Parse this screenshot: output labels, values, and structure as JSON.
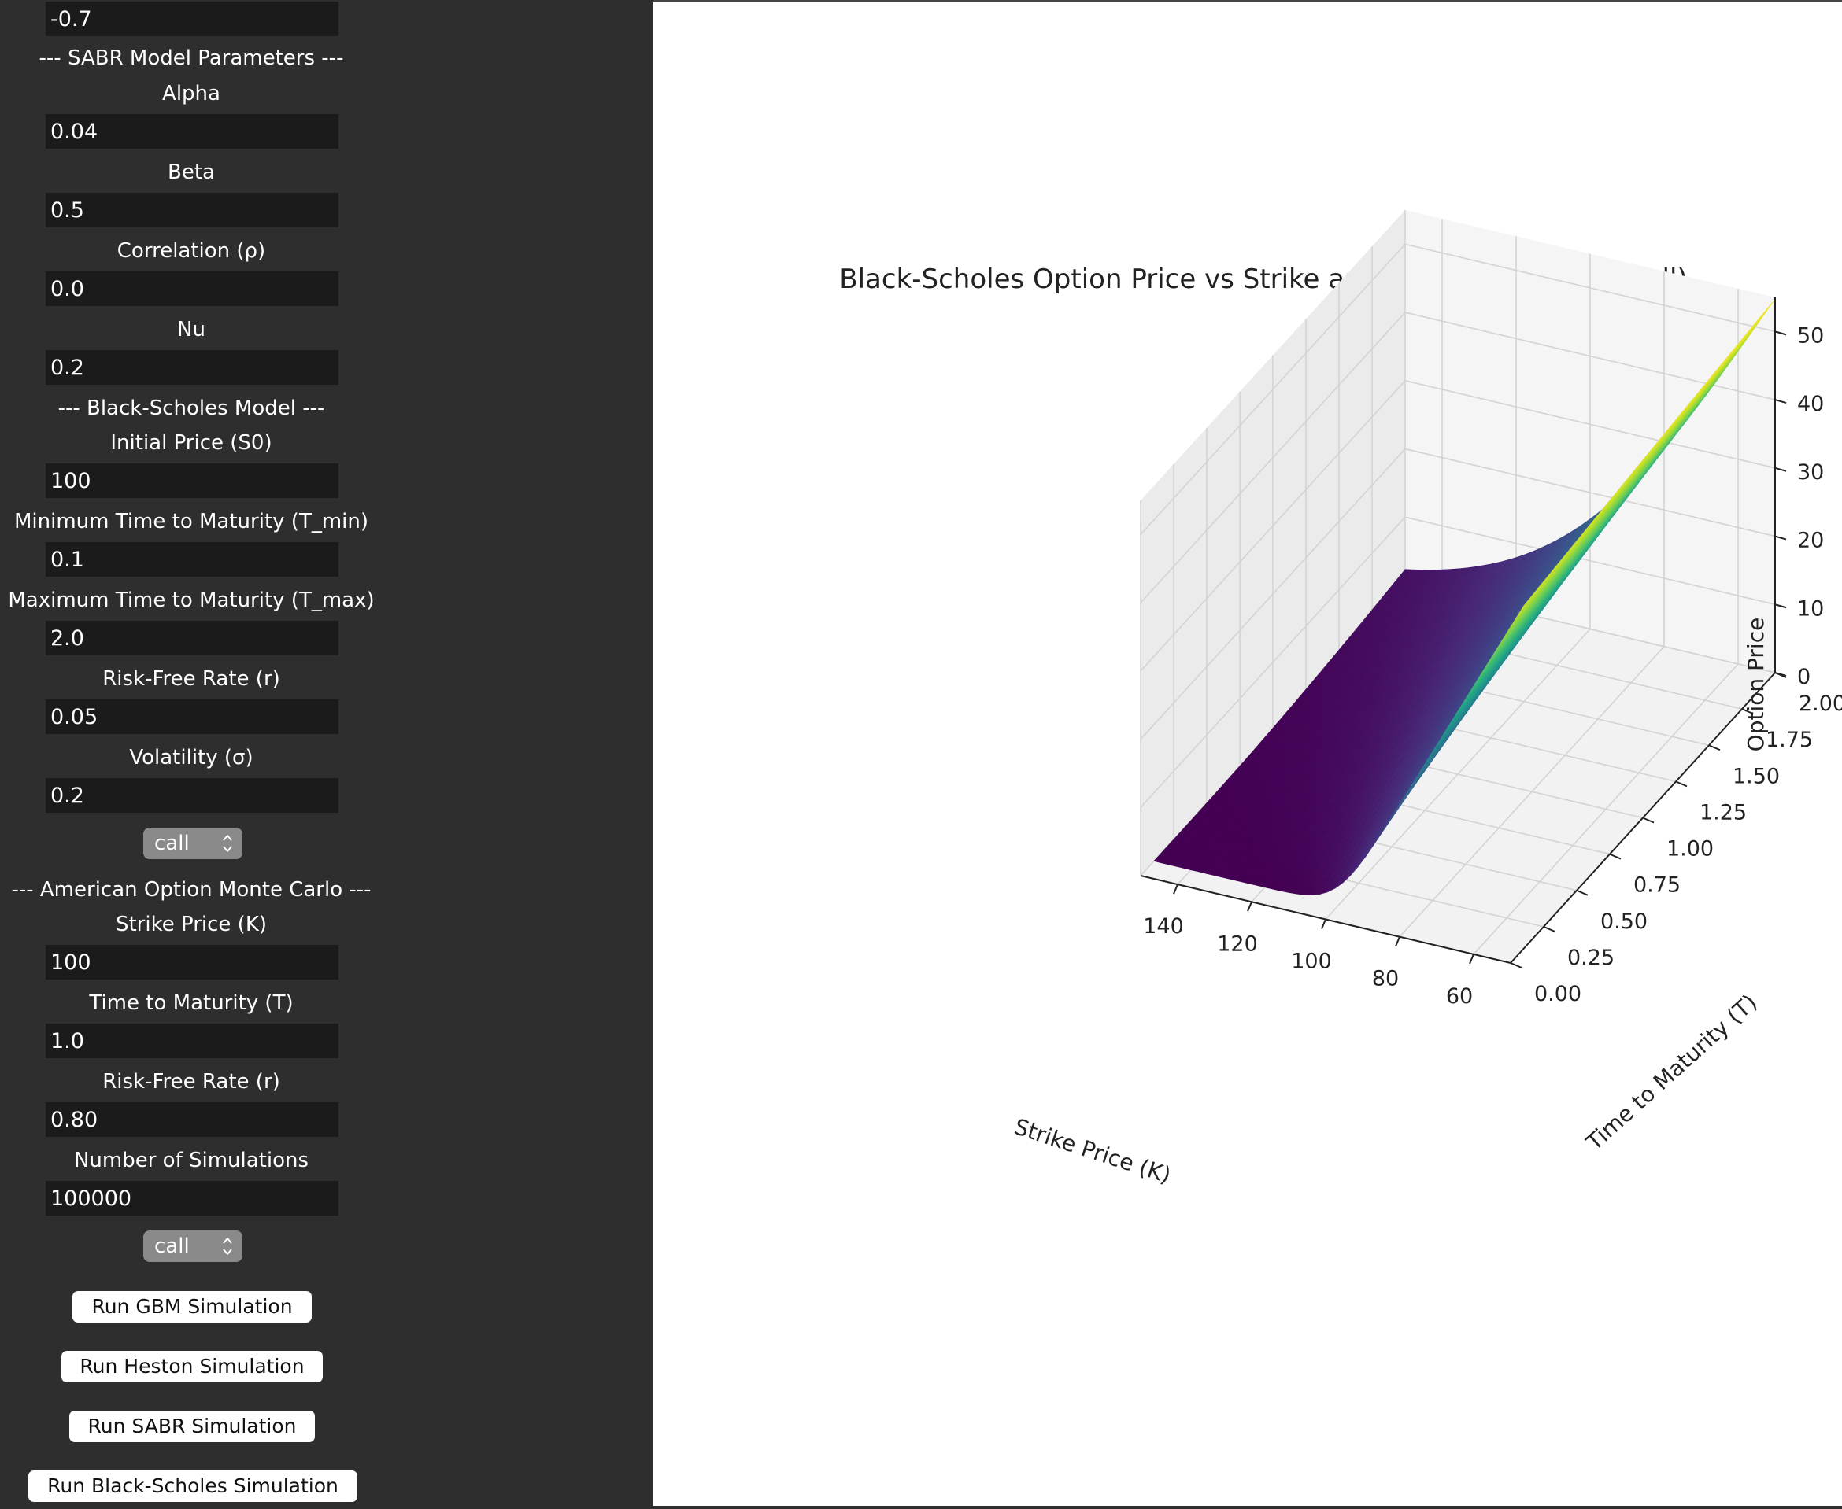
{
  "panel": {
    "top_value": "-0.7",
    "sabr": {
      "header": "--- SABR Model Parameters ---",
      "alpha_label": "Alpha",
      "alpha_value": "0.04",
      "beta_label": "Beta",
      "beta_value": "0.5",
      "rho_label": "Correlation (ρ)",
      "rho_value": "0.0",
      "nu_label": "Nu",
      "nu_value": "0.2"
    },
    "bs": {
      "header": "--- Black-Scholes Model ---",
      "s0_label": "Initial Price (S0)",
      "s0_value": "100",
      "tmin_label": "Minimum Time to Maturity (T_min)",
      "tmin_value": "0.1",
      "tmax_label": "Maximum Time to Maturity (T_max)",
      "tmax_value": "2.0",
      "r_label": "Risk-Free Rate (r)",
      "r_value": "0.05",
      "vol_label": "Volatility (σ)",
      "vol_value": "0.2",
      "option_type": "call"
    },
    "american": {
      "header": "--- American Option Monte Carlo ---",
      "k_label": "Strike Price (K)",
      "k_value": "100",
      "t_label": "Time to Maturity (T)",
      "t_value": "1.0",
      "r_label": "Risk-Free Rate (r)",
      "r_value": "0.80",
      "n_label": "Number of Simulations",
      "n_value": "100000",
      "option_type": "call"
    },
    "buttons": {
      "gbm": "Run GBM Simulation",
      "heston": "Run Heston Simulation",
      "sabr": "Run SABR Simulation",
      "bs": "Run Black-Scholes Simulation"
    }
  },
  "colors": {
    "panel_bg": "#2e2e2e",
    "field_bg": "#1b1b1b",
    "select_bg": "#8a8a8a",
    "colormap": "viridis"
  },
  "chart_data": {
    "type": "surface",
    "title": "Black-Scholes Option Price vs Strike and Time to Maturity (Call)",
    "xlabel": "Strike Price (K)",
    "ylabel": "Time to Maturity (T)",
    "zlabel": "Option Price",
    "x_ticks": [
      "60",
      "80",
      "100",
      "120",
      "140"
    ],
    "y_ticks": [
      "0.00",
      "0.25",
      "0.50",
      "0.75",
      "1.00",
      "1.25",
      "1.50",
      "1.75",
      "2.00"
    ],
    "z_ticks": [
      "0",
      "10",
      "20",
      "30",
      "40",
      "50"
    ],
    "xlim": [
      50,
      150
    ],
    "ylim": [
      0,
      2
    ],
    "zlim": [
      0,
      55
    ],
    "S0": 100,
    "r": 0.05,
    "sigma": 0.2,
    "T_min": 0.1,
    "T_max": 2.0,
    "K_min": 50,
    "K_max": 150,
    "option_type": "call"
  }
}
